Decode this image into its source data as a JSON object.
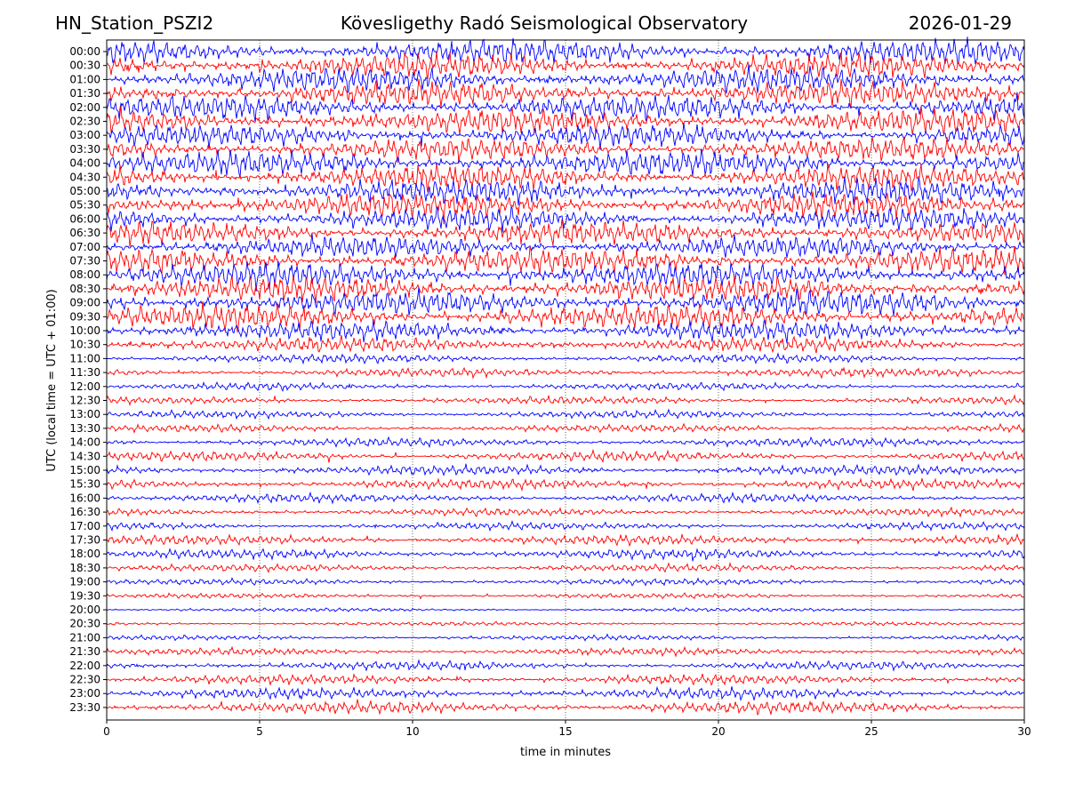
{
  "header": {
    "station": "HN_Station_PSZI2",
    "observatory": "Kövesligethy Radó Seismological Observatory",
    "date": "2026-01-29"
  },
  "chart_data": {
    "type": "line",
    "title": "Kövesligethy Radó Seismological Observatory",
    "xlabel": "time in minutes",
    "ylabel": "UTC (local time = UTC + 01:00)",
    "xlim": [
      0,
      30
    ],
    "x_ticks": [
      "0",
      "5",
      "10",
      "15",
      "20",
      "25",
      "30"
    ],
    "grid_x": true,
    "colors": [
      "#0000ff",
      "#ff0000"
    ],
    "rows": [
      "00:00",
      "00:30",
      "01:00",
      "01:30",
      "02:00",
      "02:30",
      "03:00",
      "03:30",
      "04:00",
      "04:30",
      "05:00",
      "05:30",
      "06:00",
      "06:30",
      "07:00",
      "07:30",
      "08:00",
      "08:30",
      "09:00",
      "09:30",
      "10:00",
      "10:30",
      "11:00",
      "11:30",
      "12:00",
      "12:30",
      "13:00",
      "13:30",
      "14:00",
      "14:30",
      "15:00",
      "15:30",
      "16:00",
      "16:30",
      "17:00",
      "17:30",
      "18:00",
      "18:30",
      "19:00",
      "19:30",
      "20:00",
      "20:30",
      "21:00",
      "21:30",
      "22:00",
      "22:30",
      "23:00",
      "23:30"
    ],
    "relative_amplitude": [
      1.0,
      1.0,
      1.0,
      1.0,
      1.0,
      1.0,
      0.9,
      0.9,
      1.0,
      1.0,
      1.0,
      1.0,
      0.9,
      0.9,
      0.9,
      1.0,
      1.0,
      1.0,
      1.0,
      1.0,
      0.8,
      0.6,
      0.35,
      0.35,
      0.3,
      0.3,
      0.3,
      0.3,
      0.35,
      0.4,
      0.4,
      0.4,
      0.35,
      0.3,
      0.3,
      0.4,
      0.4,
      0.3,
      0.25,
      0.2,
      0.15,
      0.15,
      0.2,
      0.3,
      0.35,
      0.4,
      0.45,
      0.5
    ]
  }
}
